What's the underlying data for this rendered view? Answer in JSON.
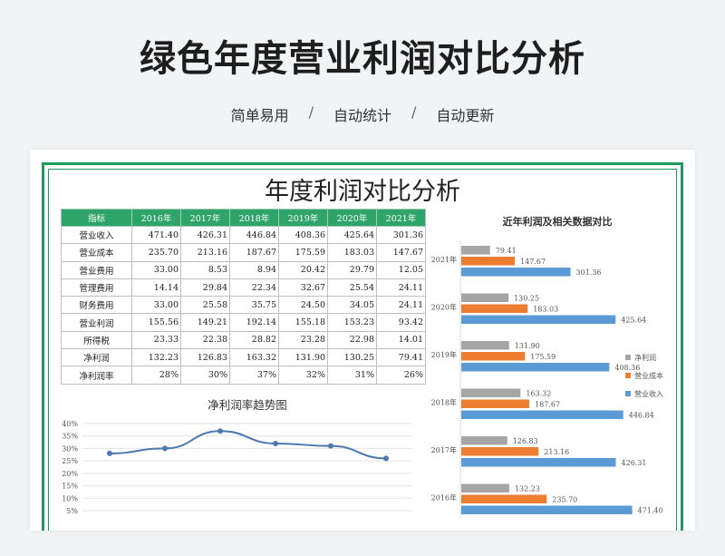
{
  "hero": {
    "title": "绿色年度营业利润对比分析",
    "tags": [
      "简单易用",
      "自动统计",
      "自动更新"
    ],
    "separator": "/"
  },
  "sheet": {
    "title": "年度利润对比分析",
    "table": {
      "headers": [
        "指标",
        "2016年",
        "2017年",
        "2018年",
        "2019年",
        "2020年",
        "2021年"
      ],
      "rows": [
        [
          "营业收入",
          "471.40",
          "426.31",
          "446.84",
          "408.36",
          "425.64",
          "301.36"
        ],
        [
          "营业成本",
          "235.70",
          "213.16",
          "187.67",
          "175.59",
          "183.03",
          "147.67"
        ],
        [
          "营业费用",
          "33.00",
          "8.53",
          "8.94",
          "20.42",
          "29.79",
          "12.05"
        ],
        [
          "管理费用",
          "14.14",
          "29.84",
          "22.34",
          "32.67",
          "25.54",
          "24.11"
        ],
        [
          "财务费用",
          "33.00",
          "25.58",
          "35.75",
          "24.50",
          "34.05",
          "24.11"
        ],
        [
          "营业利润",
          "155.56",
          "149.21",
          "192.14",
          "155.18",
          "153.23",
          "93.42"
        ],
        [
          "所得税",
          "23.33",
          "22.38",
          "28.82",
          "23.28",
          "22.98",
          "14.01"
        ],
        [
          "净利润",
          "132.23",
          "126.83",
          "163.32",
          "131.90",
          "130.25",
          "79.41"
        ],
        [
          "净利润率",
          "28%",
          "30%",
          "37%",
          "32%",
          "31%",
          "26%"
        ]
      ]
    }
  },
  "colors": {
    "green": "#2fa46a",
    "line": "#4a78b0",
    "gray": "#a5a5a5",
    "orange": "#ed7d31",
    "blue": "#5b9bd5"
  },
  "chart_data": [
    {
      "type": "line",
      "title": "净利润率趋势图",
      "x": [
        "2016年",
        "2017年",
        "2018年",
        "2019年",
        "2020年",
        "2021年"
      ],
      "series": [
        {
          "values": [
            28,
            30,
            37,
            32,
            31,
            26
          ]
        }
      ],
      "yticks": [
        "40%",
        "35%",
        "30%",
        "25%",
        "20%",
        "15%",
        "10%",
        "5%"
      ],
      "ylim": [
        5,
        40
      ],
      "grid": true
    },
    {
      "type": "bar",
      "title": "近年利润及相关数据对比",
      "orientation": "horizontal",
      "categories": [
        "2021年",
        "2020年",
        "2019年",
        "2018年",
        "2017年",
        "2016年"
      ],
      "series": [
        {
          "name": "净利润",
          "values": [
            79.41,
            130.25,
            131.9,
            163.32,
            126.83,
            132.23
          ],
          "labels": [
            "79.41",
            "130.25",
            "131.90",
            "163.32",
            "126.83",
            "132.23"
          ]
        },
        {
          "name": "营业成本",
          "values": [
            147.67,
            183.03,
            175.59,
            187.67,
            213.16,
            235.7
          ],
          "labels": [
            "147.67",
            "183.03",
            "175.59",
            "187.67",
            "213.16",
            "235.70"
          ]
        },
        {
          "name": "营业收入",
          "values": [
            301.36,
            425.64,
            408.36,
            446.84,
            426.31,
            471.4
          ],
          "labels": [
            "301.36",
            "425.64",
            "408.36",
            "446.84",
            "426.31",
            "471.40"
          ]
        }
      ],
      "legend": "right",
      "grid": true
    }
  ]
}
